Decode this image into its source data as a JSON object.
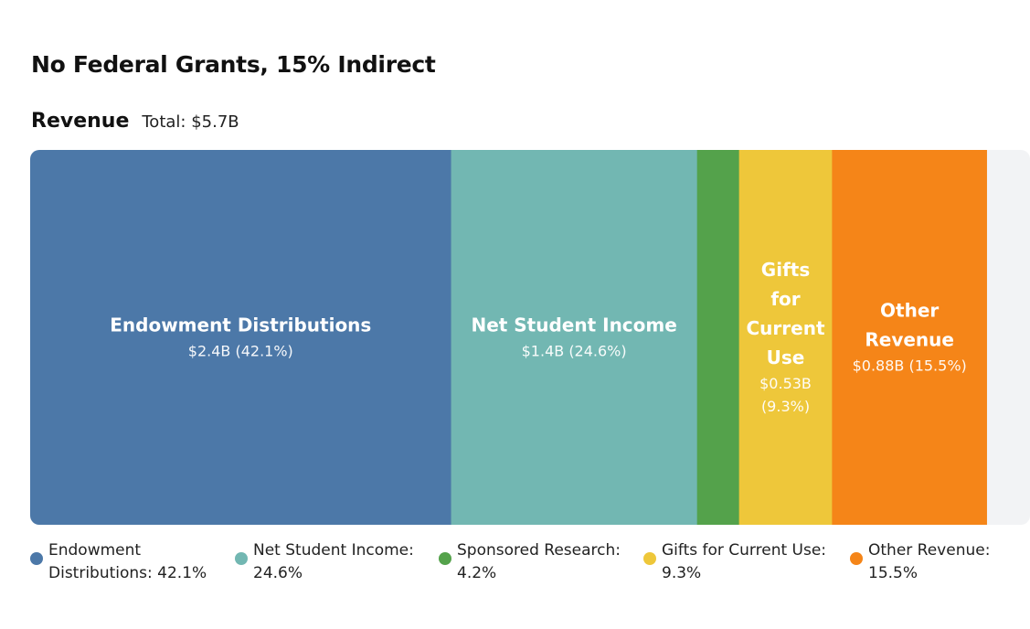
{
  "header": {
    "title": "No Federal Grants, 15% Indirect",
    "section_label": "Revenue",
    "total_text": "Total: $5.7B"
  },
  "chart_data": {
    "type": "bar",
    "orientation": "horizontal-stacked",
    "total": 5.7,
    "unit": "$B",
    "segments": [
      {
        "name": "Endowment Distributions",
        "label_lines": [
          "Endowment Distributions"
        ],
        "value_text": "$2.4B (42.1%)",
        "value_lines": [
          "$2.4B (42.1%)"
        ],
        "value": 2.4,
        "percent": 42.1,
        "color": "#4C78A8",
        "show_label": true
      },
      {
        "name": "Net Student Income",
        "label_lines": [
          "Net Student Income"
        ],
        "value_text": "$1.4B (24.6%)",
        "value_lines": [
          "$1.4B (24.6%)"
        ],
        "value": 1.4,
        "percent": 24.6,
        "color": "#72B7B2",
        "show_label": true
      },
      {
        "name": "Sponsored Research",
        "label_lines": [],
        "value_text": "",
        "value_lines": [],
        "value": 0.24,
        "percent": 4.2,
        "color": "#54A24B",
        "show_label": false
      },
      {
        "name": "Gifts for Current Use",
        "label_lines": [
          "Gifts",
          "for",
          "Current",
          "Use"
        ],
        "value_text": "$0.53B (9.3%)",
        "value_lines": [
          "$0.53B",
          "(9.3%)"
        ],
        "value": 0.53,
        "percent": 9.3,
        "color": "#EEC73A",
        "show_label": true
      },
      {
        "name": "Other Revenue",
        "label_lines": [
          "Other",
          "Revenue"
        ],
        "value_text": "$0.88B (15.5%)",
        "value_lines": [
          "$0.88B (15.5%)"
        ],
        "value": 0.88,
        "percent": 15.5,
        "color": "#F58518",
        "show_label": true
      }
    ],
    "remainder_percent": 4.3,
    "remainder_color": "#F2F3F5"
  },
  "legend": {
    "items": [
      {
        "lines": [
          "Endowment",
          "Distributions: 42.1%"
        ],
        "color": "#4C78A8"
      },
      {
        "lines": [
          "Net Student Income:",
          "24.6%"
        ],
        "color": "#72B7B2"
      },
      {
        "lines": [
          "Sponsored Research:",
          "4.2%"
        ],
        "color": "#54A24B"
      },
      {
        "lines": [
          "Gifts for Current Use:",
          "9.3%"
        ],
        "color": "#EEC73A"
      },
      {
        "lines": [
          "Other Revenue:",
          "15.5%"
        ],
        "color": "#F58518"
      }
    ]
  }
}
